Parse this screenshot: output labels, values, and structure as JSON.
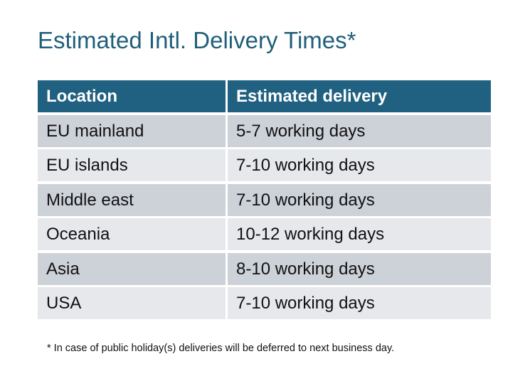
{
  "title": "Estimated Intl. Delivery Times*",
  "table": {
    "headers": [
      "Location",
      "Estimated delivery"
    ],
    "rows": [
      [
        "EU mainland",
        "5-7 working days"
      ],
      [
        "EU islands",
        "7-10 working days"
      ],
      [
        "Middle east",
        "7-10 working days"
      ],
      [
        "Oceania",
        "10-12 working days"
      ],
      [
        "Asia",
        "8-10 working days"
      ],
      [
        "USA",
        "7-10 working days"
      ]
    ]
  },
  "footnote": "* In case of public holiday(s) deliveries will be deferred to next business day.",
  "colors": {
    "header": "#206080",
    "title": "#1f5f7a",
    "row_odd": "#cdd1d8",
    "row_even": "#e6e8eb"
  }
}
